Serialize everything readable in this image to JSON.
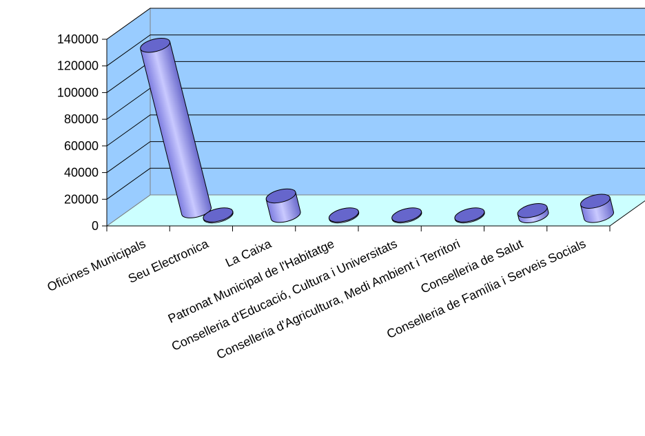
{
  "chart_data": {
    "type": "bar",
    "style": "3d-cylinder",
    "categories": [
      "Oficines Municipals",
      "Seu Electronica",
      "La Caixa",
      "Patronat Municipal de l'Habitatge",
      "Conselleria d'Educació, Cultura i Universitats",
      "Conselleria d'Agricultura, Medi Ambient i Territori",
      "Conselleria de Salut",
      "Conselleria de Família i Serveis Socials"
    ],
    "values": [
      128000,
      800,
      15000,
      300,
      400,
      700,
      4000,
      11000
    ],
    "ylim": [
      0,
      140000
    ],
    "yticks": [
      0,
      20000,
      40000,
      60000,
      80000,
      100000,
      120000,
      140000
    ],
    "grid": true,
    "legend": "none",
    "colors": {
      "wall": "#99ccff",
      "floor": "#ccffff",
      "bar_body": "#9999ff",
      "bar_top": "#6666cc",
      "bar_outline": "#000000"
    }
  }
}
